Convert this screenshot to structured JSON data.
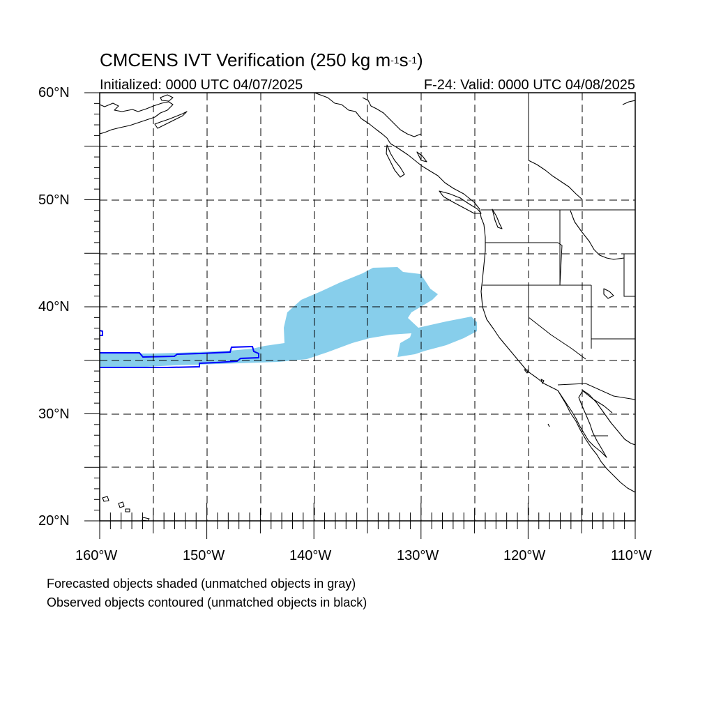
{
  "title": {
    "main": "CMCENS IVT Verification (250 kg m",
    "sup1": "-1",
    "mid": "s",
    "sup2": "-1",
    "end": ")"
  },
  "subtitle_left": "Initialized: 0000 UTC 04/07/2025",
  "subtitle_right": "F-24: Valid: 0000 UTC 04/08/2025",
  "axes": {
    "lat_labels": [
      "60°N",
      "50°N",
      "40°N",
      "30°N",
      "20°N"
    ],
    "lon_labels": [
      "160°W",
      "150°W",
      "140°W",
      "130°W",
      "120°W",
      "110°W"
    ]
  },
  "notes": [
    "Forecasted objects shaded (unmatched objects in gray)",
    "Observed objects contoured (unmatched objects in black)"
  ],
  "colors": {
    "forecast_fill": "#87ceeb",
    "observed_contour": "#0000ff",
    "coastline": "#000000",
    "gridline": "#000000"
  },
  "chart_data": {
    "type": "map",
    "projection": "cylindrical-equidistant",
    "lon_range": [
      -160,
      -110
    ],
    "lat_range": [
      20,
      60
    ],
    "grid_step_deg": 5,
    "label_step_deg": 10,
    "grid": true
  }
}
